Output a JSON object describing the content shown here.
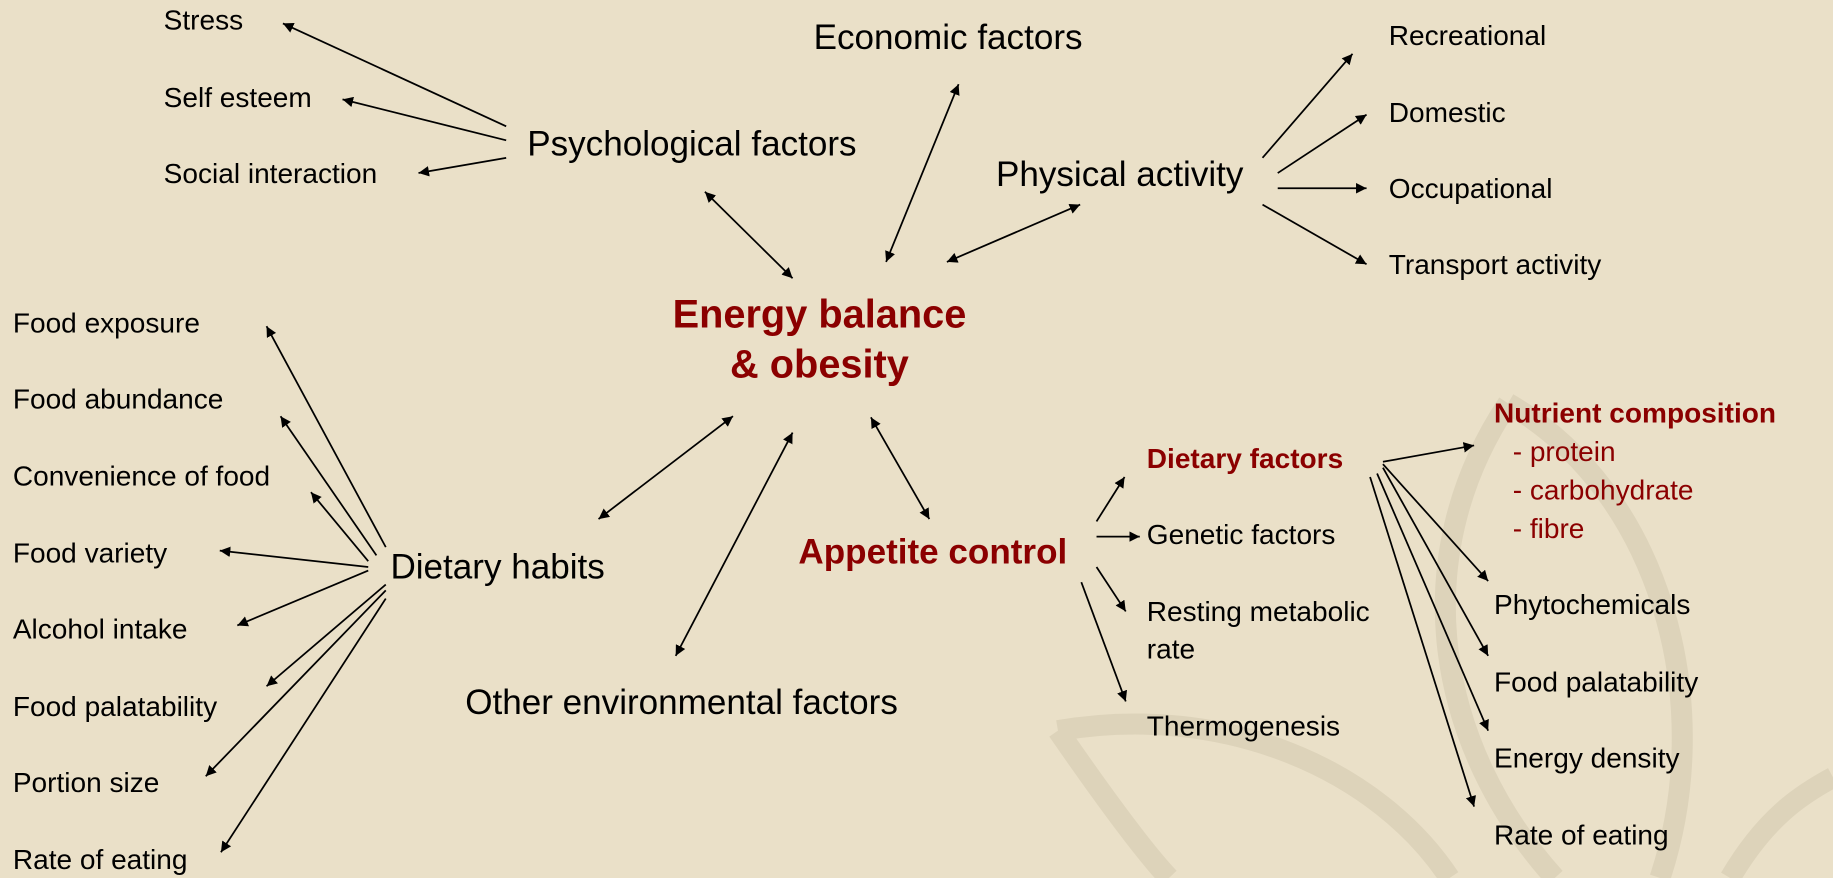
{
  "center": {
    "lines": [
      "Energy balance",
      "& obesity"
    ]
  },
  "nodes": [
    {
      "label": "Stress"
    },
    {
      "label": "Self esteem"
    },
    {
      "label": "Social interaction"
    },
    {
      "label": "Psychological factors"
    },
    {
      "label": "Economic factors"
    },
    {
      "label": "Physical activity"
    },
    {
      "label": "Recreational"
    },
    {
      "label": "Domestic"
    },
    {
      "label": "Occupational"
    },
    {
      "label": "Transport activity"
    },
    {
      "label": "Food exposure"
    },
    {
      "label": "Food abundance"
    },
    {
      "label": "Convenience of food"
    },
    {
      "label": "Food variety"
    },
    {
      "label": "Alcohol intake"
    },
    {
      "label": "Food palatability"
    },
    {
      "label": "Portion size"
    },
    {
      "label": "Rate of eating"
    },
    {
      "label": "Dietary habits"
    },
    {
      "label": "Other environmental factors"
    },
    {
      "label": "Appetite control"
    },
    {
      "label": "Dietary factors"
    },
    {
      "label": "Genetic factors"
    },
    {
      "lines": [
        "Resting metabolic",
        "rate"
      ]
    },
    {
      "label": "Thermogenesis"
    },
    {
      "lines": [
        "Nutrient composition",
        "- protein",
        "- carbohydrate",
        "- fibre"
      ]
    },
    {
      "label": "Phytochemicals"
    },
    {
      "label": "Food palatability"
    },
    {
      "label": "Energy density"
    },
    {
      "label": "Rate of eating"
    }
  ]
}
